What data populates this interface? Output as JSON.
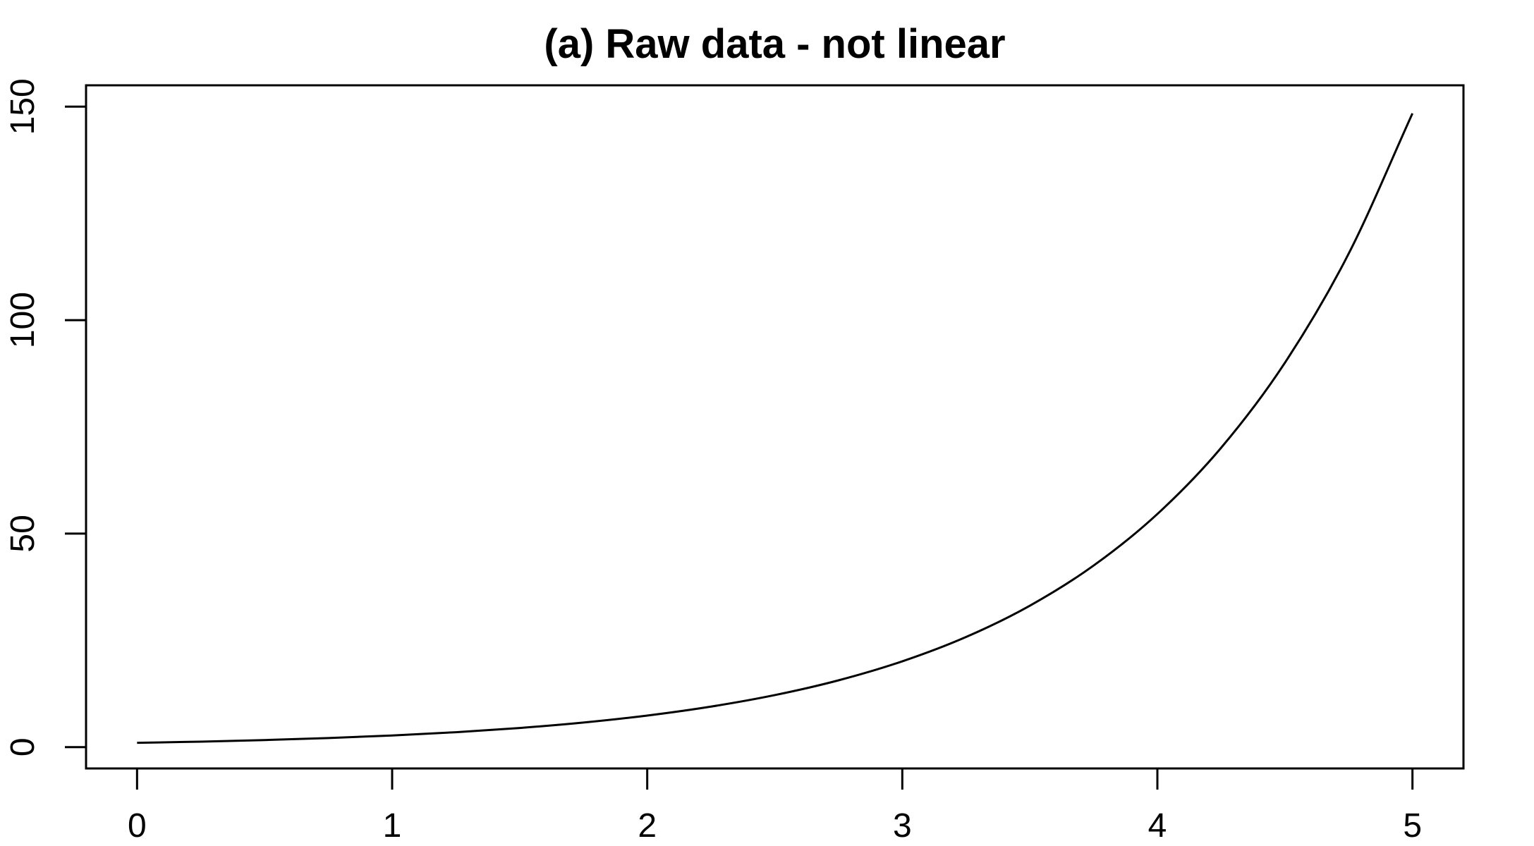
{
  "chart_data": {
    "type": "line",
    "title": "(a) Raw data - not linear",
    "xlabel": "",
    "ylabel": "",
    "xlim": [
      -0.2,
      5.2
    ],
    "ylim": [
      -5,
      155
    ],
    "x_ticks": [
      0,
      1,
      2,
      3,
      4,
      5
    ],
    "y_ticks": [
      0,
      50,
      100,
      150
    ],
    "grid": false,
    "series": [
      {
        "x": [
          0,
          0.25,
          0.5,
          0.75,
          1,
          1.25,
          1.5,
          1.75,
          2,
          2.25,
          2.5,
          2.75,
          3,
          3.25,
          3.5,
          3.75,
          4,
          4.25,
          4.5,
          4.75,
          5
        ],
        "y": [
          1.0,
          1.28,
          1.65,
          2.12,
          2.72,
          3.49,
          4.48,
          5.75,
          7.39,
          9.49,
          12.18,
          15.64,
          20.09,
          25.79,
          33.12,
          42.52,
          54.6,
          70.11,
          90.02,
          115.58,
          148.41
        ],
        "color": "#000000"
      }
    ]
  }
}
